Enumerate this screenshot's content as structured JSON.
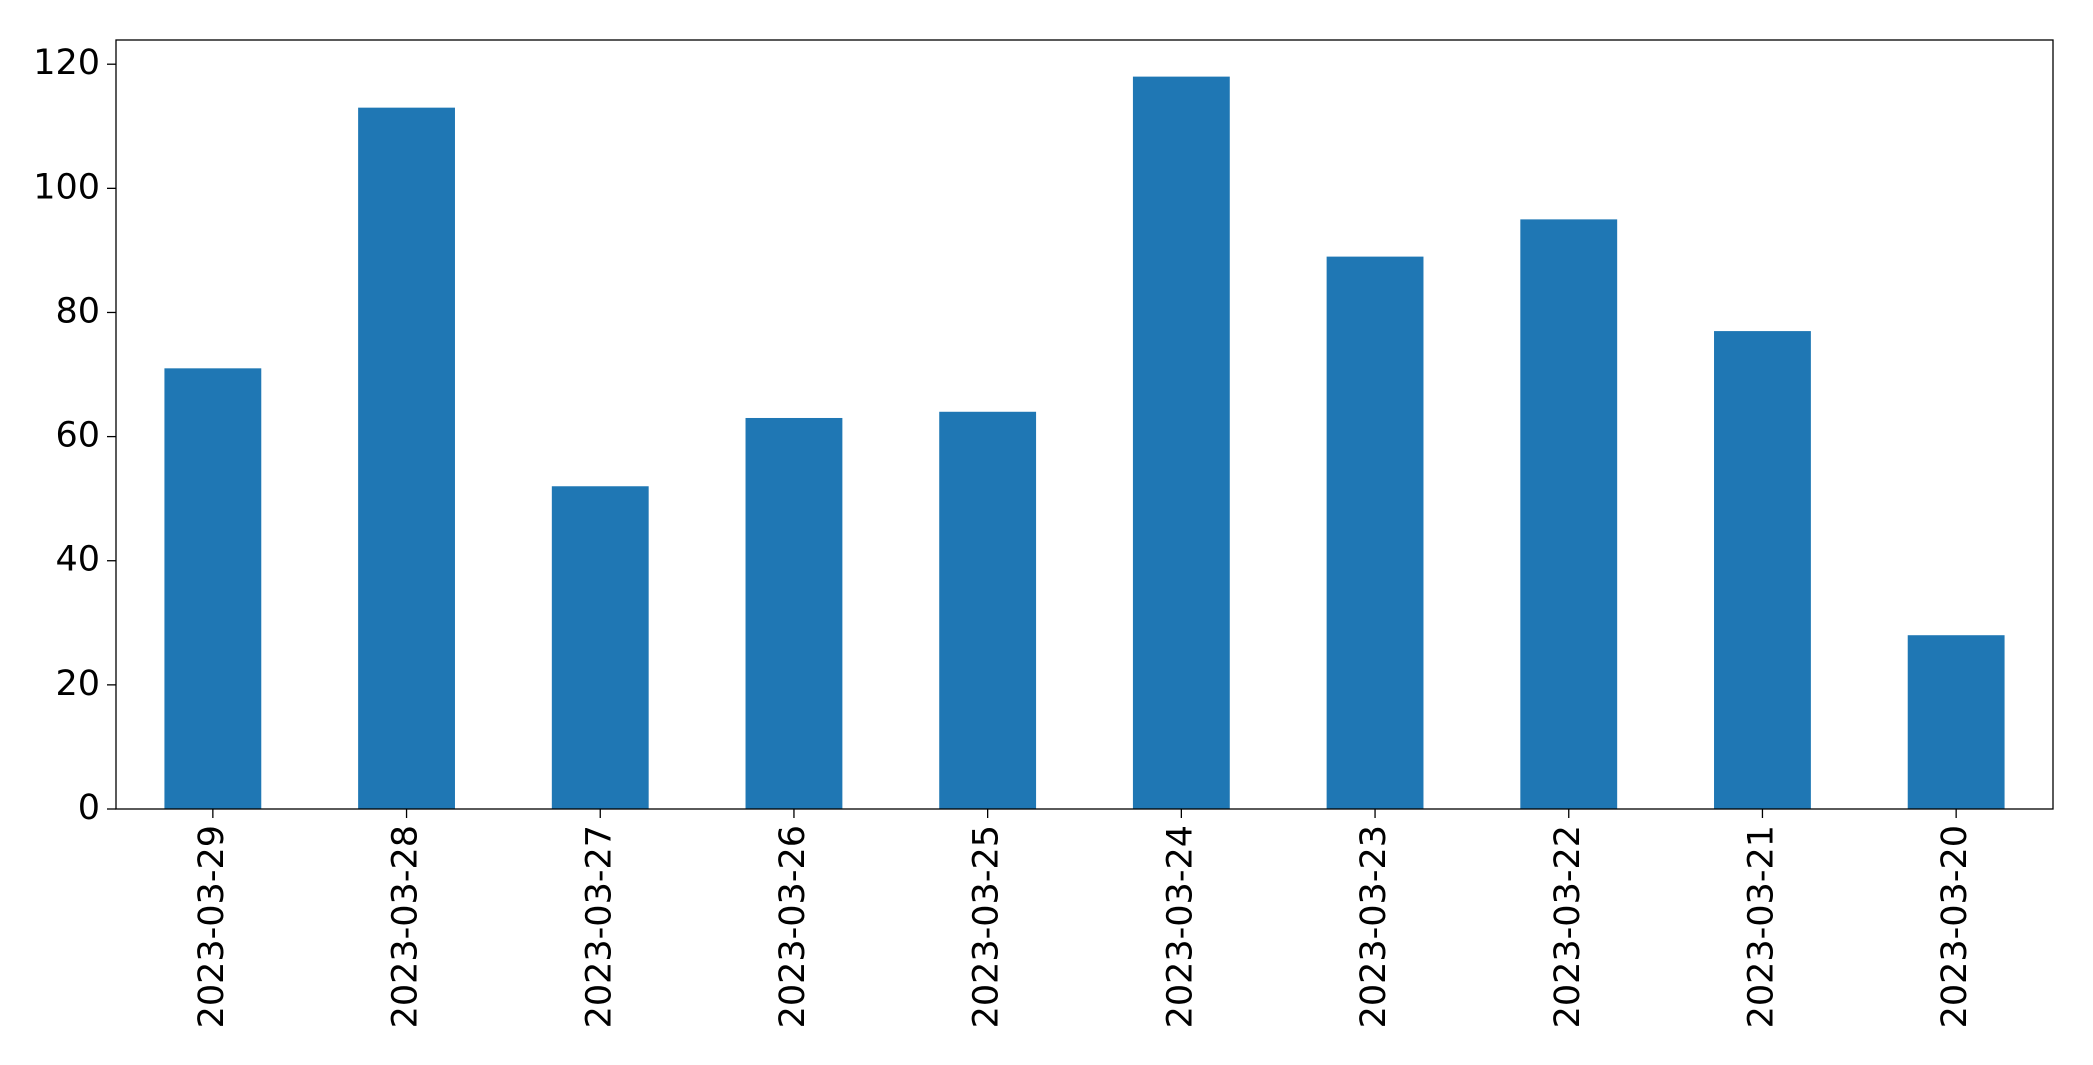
{
  "chart_data": {
    "type": "bar",
    "categories": [
      "2023-03-29",
      "2023-03-28",
      "2023-03-27",
      "2023-03-26",
      "2023-03-25",
      "2023-03-24",
      "2023-03-23",
      "2023-03-22",
      "2023-03-21",
      "2023-03-20"
    ],
    "values": [
      71,
      113,
      52,
      63,
      64,
      118,
      89,
      95,
      77,
      28
    ],
    "color": "#1f77b4",
    "ylim": [
      0,
      123.9
    ],
    "yticks": [
      0,
      20,
      40,
      60,
      80,
      100,
      120
    ],
    "grid": false
  }
}
